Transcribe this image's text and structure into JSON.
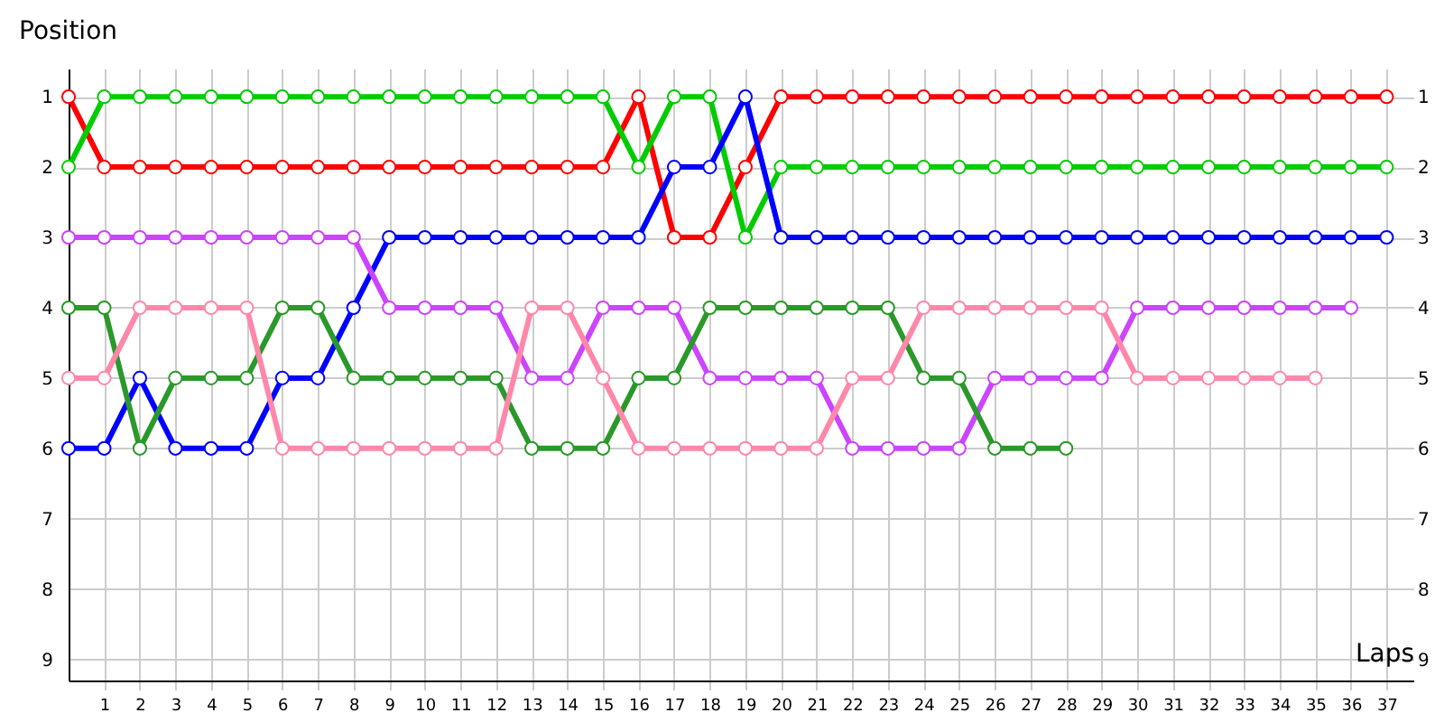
{
  "chart_data": {
    "type": "line",
    "xlabel": "Laps",
    "ylabel": "Position",
    "x": [
      0,
      1,
      2,
      3,
      4,
      5,
      6,
      7,
      8,
      9,
      10,
      11,
      12,
      13,
      14,
      15,
      16,
      17,
      18,
      19,
      20,
      21,
      22,
      23,
      24,
      25,
      26,
      27,
      28,
      29,
      30,
      31,
      32,
      33,
      34,
      35,
      36,
      37
    ],
    "series": [
      {
        "color": "#ff0000",
        "values": [
          1,
          2,
          2,
          2,
          2,
          2,
          2,
          2,
          2,
          2,
          2,
          2,
          2,
          2,
          2,
          2,
          1,
          3,
          3,
          2,
          1,
          1,
          1,
          1,
          1,
          1,
          1,
          1,
          1,
          1,
          1,
          1,
          1,
          1,
          1,
          1,
          1,
          1
        ]
      },
      {
        "color": "#00cc00",
        "values": [
          2,
          1,
          1,
          1,
          1,
          1,
          1,
          1,
          1,
          1,
          1,
          1,
          1,
          1,
          1,
          1,
          2,
          1,
          1,
          3,
          2,
          2,
          2,
          2,
          2,
          2,
          2,
          2,
          2,
          2,
          2,
          2,
          2,
          2,
          2,
          2,
          2,
          2
        ]
      },
      {
        "color": "#0000ff",
        "values": [
          6,
          6,
          5,
          6,
          6,
          6,
          5,
          5,
          4,
          3,
          3,
          3,
          3,
          3,
          3,
          3,
          3,
          2,
          2,
          1,
          3,
          3,
          3,
          3,
          3,
          3,
          3,
          3,
          3,
          3,
          3,
          3,
          3,
          3,
          3,
          3,
          3,
          3
        ]
      },
      {
        "color": "#cc44ff",
        "values": [
          3,
          3,
          3,
          3,
          3,
          3,
          3,
          3,
          3,
          4,
          4,
          4,
          4,
          5,
          5,
          4,
          4,
          4,
          5,
          5,
          5,
          5,
          6,
          6,
          6,
          6,
          5,
          5,
          5,
          5,
          4,
          4,
          4,
          4,
          4,
          4,
          4,
          null
        ]
      },
      {
        "color": "#2a992a",
        "values": [
          4,
          4,
          6,
          5,
          5,
          5,
          4,
          4,
          5,
          5,
          5,
          5,
          5,
          6,
          6,
          6,
          5,
          5,
          4,
          4,
          4,
          4,
          4,
          4,
          5,
          5,
          6,
          6,
          6,
          null,
          null,
          null,
          null,
          null,
          null,
          null,
          null,
          null
        ]
      },
      {
        "color": "#ff88aa",
        "values": [
          5,
          5,
          4,
          4,
          4,
          4,
          6,
          6,
          6,
          6,
          6,
          6,
          6,
          4,
          4,
          5,
          6,
          6,
          6,
          6,
          6,
          6,
          5,
          5,
          4,
          4,
          4,
          4,
          4,
          4,
          5,
          5,
          5,
          5,
          5,
          5,
          null,
          null
        ]
      }
    ],
    "xlim": [
      0,
      37.75
    ],
    "xticks": [
      1,
      2,
      3,
      4,
      5,
      6,
      7,
      8,
      9,
      10,
      11,
      12,
      13,
      14,
      15,
      16,
      17,
      18,
      19,
      20,
      21,
      22,
      23,
      24,
      25,
      26,
      27,
      28,
      29,
      30,
      31,
      32,
      33,
      34,
      35,
      36,
      37
    ],
    "ylim": [
      9.3,
      0.6
    ],
    "yticks": [
      1,
      2,
      3,
      4,
      5,
      6,
      7,
      8,
      9
    ],
    "y2lim": [
      9.3,
      0.6
    ],
    "y2ticks": [
      1,
      2,
      3,
      4,
      5,
      6,
      7,
      8,
      9
    ],
    "grid": true,
    "marker": "circle",
    "line_style": "solid",
    "legend": false
  }
}
